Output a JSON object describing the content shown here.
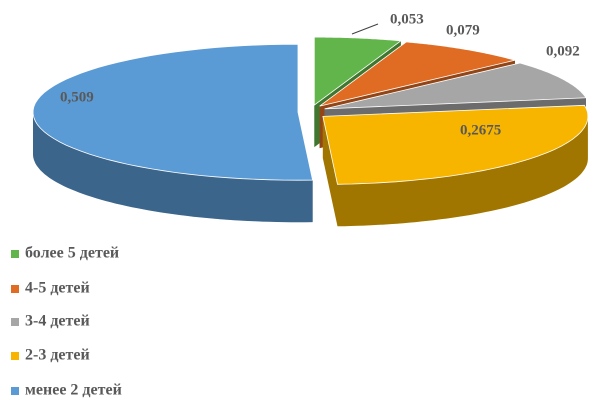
{
  "chart_data": {
    "type": "pie",
    "categories": [
      "более 5 детей",
      "4-5 детей",
      "3-4 детей",
      "2-3 детей",
      "менее 2 детей"
    ],
    "values": [
      0.053,
      0.079,
      0.092,
      0.2675,
      0.509
    ],
    "value_labels": [
      "0,053",
      "0,079",
      "0,092",
      "0,2675",
      "0,509"
    ],
    "colors": [
      "#62b54a",
      "#e06c24",
      "#a6a6a6",
      "#f7b500",
      "#5b9bd5"
    ],
    "legend": "bottom-left"
  }
}
